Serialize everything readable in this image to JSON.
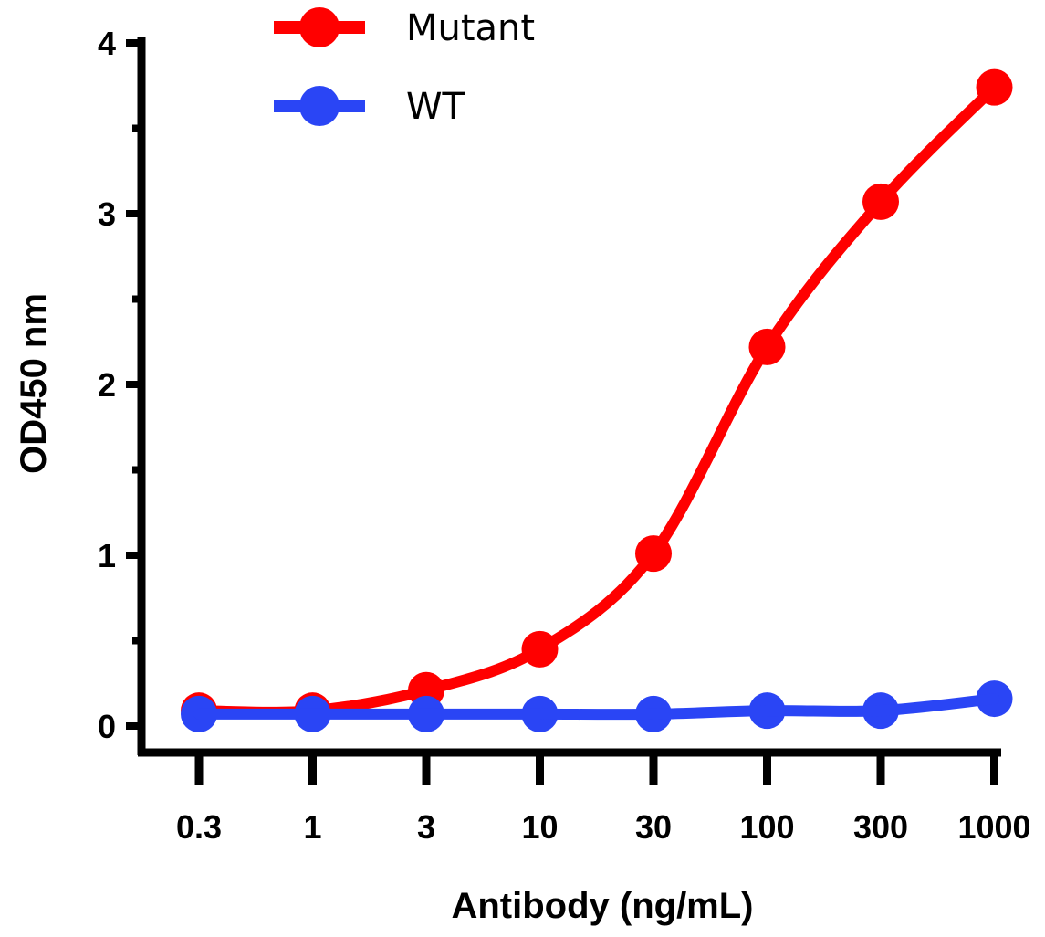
{
  "chart_data": {
    "type": "line",
    "title": "",
    "xlabel": "Antibody (ng/mL)",
    "ylabel": "OD450 nm",
    "categories": [
      "0.3",
      "1",
      "3",
      "10",
      "30",
      "100",
      "300",
      "1000"
    ],
    "x": [
      0.3,
      1,
      3,
      10,
      30,
      100,
      300,
      1000
    ],
    "ylim": [
      0,
      4
    ],
    "yticks": [
      "0",
      "1",
      "2",
      "3",
      "4"
    ],
    "grid": false,
    "legend_placement": "top-left",
    "series": [
      {
        "name": "Mutant",
        "color": "#ff0000",
        "values": [
          0.09,
          0.09,
          0.21,
          0.45,
          1.01,
          2.22,
          3.07,
          3.74
        ]
      },
      {
        "name": "WT",
        "color": "#2a45f5",
        "values": [
          0.07,
          0.07,
          0.07,
          0.07,
          0.07,
          0.09,
          0.09,
          0.16
        ]
      }
    ]
  }
}
